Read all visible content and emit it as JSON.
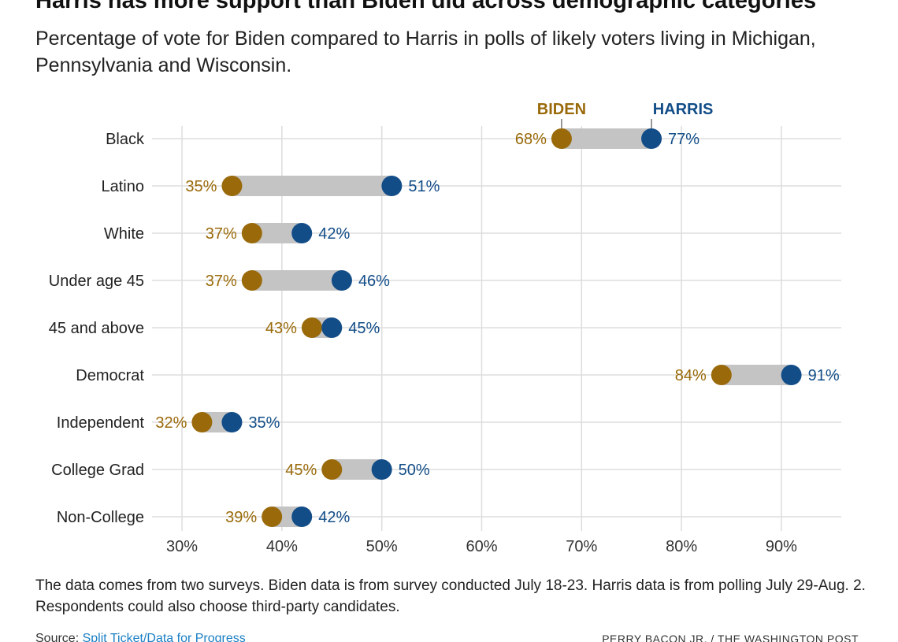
{
  "title": "Harris has more support than Biden did across demographic categories",
  "subtitle": "Percentage of vote for Biden compared to Harris in polls of likely voters living in Michigan, Pennsylvania and Wisconsin.",
  "note": "The data comes from two surveys. Biden data is from survey conducted July 18-23. Harris data is from polling July 29-Aug. 2. Respondents could also choose third-party candidates.",
  "source": {
    "label": "Source: ",
    "link_text": "Split Ticket/Data for Progress"
  },
  "credit": "PERRY BACON JR. / THE WASHINGTON POST",
  "colors": {
    "biden": "#9a6a0a",
    "harris": "#124d88",
    "bar": "#c4c4c4",
    "grid": "#dddddd",
    "link": "#1a7fc4"
  },
  "chart_data": {
    "type": "dot-plot",
    "xlim": [
      27,
      96
    ],
    "x_ticks": [
      30,
      40,
      50,
      60,
      70,
      80,
      90
    ],
    "tick_suffix": "%",
    "grid": true,
    "categories": [
      "Black",
      "Latino",
      "White",
      "Under age 45",
      "45 and above",
      "Democrat",
      "Independent",
      "College Grad",
      "Non-College"
    ],
    "series": [
      {
        "name": "BIDEN",
        "values": [
          68,
          35,
          37,
          37,
          43,
          84,
          32,
          45,
          39
        ]
      },
      {
        "name": "HARRIS",
        "values": [
          77,
          51,
          42,
          46,
          45,
          91,
          35,
          50,
          42
        ]
      }
    ],
    "value_suffix": "%"
  }
}
